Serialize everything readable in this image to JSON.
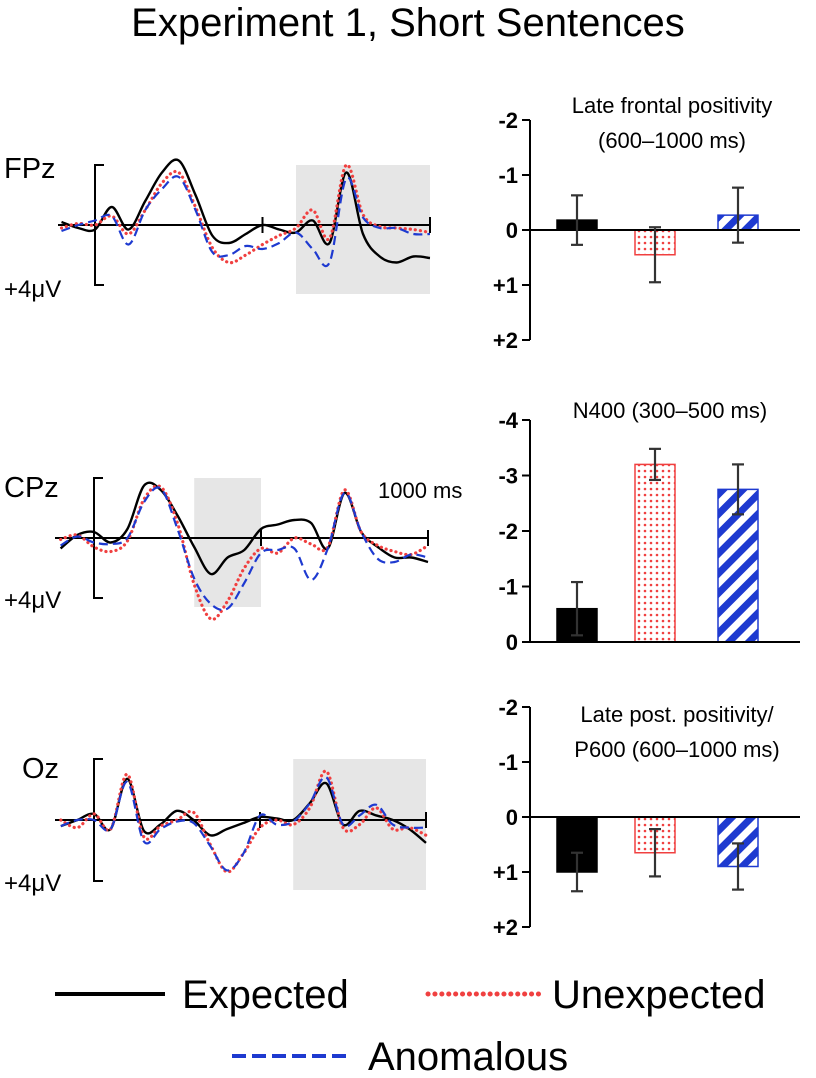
{
  "title": "Experiment 1, Short Sentences",
  "colors": {
    "expected": "#000000",
    "unexpected": "#f04040",
    "anomalous": "#1e3ad0",
    "window": "#e6e6e6",
    "error": "#333333"
  },
  "legend": [
    {
      "key": "expected",
      "label": "Expected",
      "style": "solid"
    },
    {
      "key": "unexpected",
      "label": "Unexpected",
      "style": "dotted"
    },
    {
      "key": "anomalous",
      "label": "Anomalous",
      "style": "dashed"
    }
  ],
  "chart_data": [
    {
      "type": "line",
      "electrode": "FPz",
      "amp_label": "+4μV",
      "time_label": "",
      "window_ms": [
        600,
        1000
      ],
      "x_range_ms": [
        -100,
        1000
      ],
      "y_range_uv": [
        -4,
        4
      ],
      "series": [
        {
          "name": "Expected",
          "key": "expected",
          "x": [
            -100,
            -50,
            0,
            50,
            100,
            150,
            200,
            250,
            300,
            350,
            400,
            450,
            500,
            550,
            600,
            650,
            700,
            750,
            800,
            850,
            900,
            950,
            1000
          ],
          "y": [
            -0.2,
            0.2,
            0.3,
            -1.2,
            0.3,
            -1.6,
            -3.5,
            -4.3,
            -2.0,
            0.7,
            1.2,
            0.6,
            0.0,
            0.3,
            0.5,
            -0.3,
            1.2,
            -3.5,
            0.6,
            2.1,
            2.5,
            2.1,
            2.2
          ]
        },
        {
          "name": "Unexpected",
          "key": "unexpected",
          "x": [
            -100,
            -50,
            0,
            50,
            100,
            150,
            200,
            250,
            300,
            350,
            400,
            450,
            500,
            550,
            600,
            650,
            700,
            750,
            800,
            850,
            900,
            950,
            1000
          ],
          "y": [
            0.2,
            -0.1,
            0.0,
            -0.6,
            0.6,
            -1.0,
            -2.8,
            -3.5,
            -1.2,
            1.5,
            2.5,
            2.0,
            1.3,
            0.7,
            0.2,
            -1.0,
            0.9,
            -4.0,
            -0.7,
            0.1,
            0.2,
            0.3,
            0.5
          ]
        },
        {
          "name": "Anomalous",
          "key": "anomalous",
          "x": [
            -100,
            -50,
            0,
            50,
            100,
            150,
            200,
            250,
            300,
            350,
            400,
            450,
            500,
            550,
            600,
            650,
            700,
            750,
            800,
            850,
            900,
            950,
            1000
          ],
          "y": [
            0.4,
            0.0,
            -0.3,
            -0.6,
            1.3,
            -1.0,
            -2.4,
            -3.2,
            -1.0,
            1.8,
            2.0,
            1.4,
            1.6,
            1.2,
            0.5,
            1.6,
            2.5,
            -3.1,
            -0.5,
            0.2,
            0.2,
            0.6,
            0.6
          ]
        }
      ]
    },
    {
      "type": "line",
      "electrode": "CPz",
      "amp_label": "+4μV",
      "time_label": "1000 ms",
      "window_ms": [
        300,
        500
      ],
      "x_range_ms": [
        -100,
        1000
      ],
      "y_range_uv": [
        -4,
        4
      ],
      "series": [
        {
          "name": "Expected",
          "key": "expected",
          "x": [
            -100,
            -50,
            0,
            50,
            100,
            150,
            200,
            250,
            300,
            350,
            400,
            450,
            500,
            550,
            600,
            650,
            700,
            750,
            800,
            850,
            900,
            950,
            1000
          ],
          "y": [
            0.7,
            -0.2,
            -0.4,
            0.3,
            -0.6,
            -3.5,
            -3.2,
            -1.5,
            0.6,
            2.4,
            1.3,
            0.8,
            -0.6,
            -0.9,
            -1.2,
            -1.0,
            0.7,
            -3.0,
            -0.4,
            0.6,
            1.3,
            1.3,
            1.6
          ]
        },
        {
          "name": "Unexpected",
          "key": "unexpected",
          "x": [
            -100,
            -50,
            0,
            50,
            100,
            150,
            200,
            250,
            300,
            350,
            400,
            450,
            500,
            550,
            600,
            650,
            700,
            750,
            800,
            850,
            900,
            950,
            1000
          ],
          "y": [
            0.1,
            -0.2,
            0.6,
            0.9,
            0.2,
            -2.6,
            -3.4,
            -1.0,
            3.1,
            5.4,
            4.2,
            2.0,
            0.7,
            1.0,
            0.0,
            0.4,
            0.6,
            -3.2,
            -0.4,
            0.5,
            0.9,
            1.1,
            0.5
          ]
        },
        {
          "name": "Anomalous",
          "key": "anomalous",
          "x": [
            -100,
            -50,
            0,
            50,
            100,
            150,
            200,
            250,
            300,
            350,
            400,
            450,
            500,
            550,
            600,
            650,
            700,
            750,
            800,
            850,
            900,
            950,
            1000
          ],
          "y": [
            0.5,
            -0.1,
            0.3,
            0.4,
            0.0,
            -2.4,
            -3.3,
            -0.6,
            2.7,
            4.4,
            4.7,
            3.0,
            1.0,
            0.8,
            0.7,
            2.8,
            0.7,
            -3.0,
            -0.4,
            1.4,
            1.6,
            1.1,
            1.3
          ]
        }
      ]
    },
    {
      "type": "line",
      "electrode": "Oz",
      "amp_label": "+4μV",
      "time_label": "",
      "window_ms": [
        600,
        1000
      ],
      "x_range_ms": [
        -100,
        1000
      ],
      "y_range_uv": [
        -4,
        4
      ],
      "series": [
        {
          "name": "Expected",
          "key": "expected",
          "x": [
            -100,
            -50,
            0,
            50,
            100,
            150,
            200,
            250,
            300,
            350,
            400,
            450,
            500,
            550,
            600,
            650,
            700,
            750,
            800,
            850,
            900,
            950,
            1000
          ],
          "y": [
            0.4,
            0.0,
            -0.4,
            0.6,
            -2.7,
            0.7,
            0.3,
            -0.6,
            0.0,
            1.0,
            0.6,
            0.2,
            -0.2,
            -0.1,
            0.0,
            -1.1,
            -2.4,
            0.3,
            -0.6,
            -0.3,
            0.0,
            0.6,
            1.5
          ]
        },
        {
          "name": "Unexpected",
          "key": "unexpected",
          "x": [
            -100,
            -50,
            0,
            50,
            100,
            150,
            200,
            250,
            300,
            350,
            400,
            450,
            500,
            550,
            600,
            650,
            700,
            750,
            800,
            850,
            900,
            950,
            1000
          ],
          "y": [
            0.0,
            0.5,
            -0.4,
            0.6,
            -3.0,
            1.1,
            0.4,
            0.0,
            -0.5,
            1.6,
            3.4,
            2.2,
            0.5,
            0.0,
            0.3,
            -0.8,
            -3.2,
            0.5,
            0.3,
            -0.8,
            0.6,
            0.5,
            1.0
          ]
        },
        {
          "name": "Anomalous",
          "key": "anomalous",
          "x": [
            -100,
            -50,
            0,
            50,
            100,
            150,
            200,
            250,
            300,
            350,
            400,
            450,
            500,
            550,
            600,
            650,
            700,
            750,
            800,
            850,
            900,
            950,
            1000
          ],
          "y": [
            0.4,
            0.0,
            0.0,
            0.6,
            -2.5,
            1.4,
            0.6,
            0.1,
            0.2,
            1.7,
            3.3,
            2.2,
            -0.3,
            0.3,
            0.1,
            -1.1,
            -2.8,
            0.3,
            -0.3,
            -1.0,
            0.3,
            0.5,
            0.5
          ]
        }
      ]
    },
    {
      "type": "bar",
      "title_lines": [
        "Late frontal positivity",
        "(600–1000 ms)"
      ],
      "categories": [
        "Expected",
        "Unexpected",
        "Anomalous"
      ],
      "values": [
        -0.18,
        0.45,
        -0.27
      ],
      "error": [
        0.45,
        0.5,
        0.5
      ],
      "y_range": [
        -2,
        2
      ],
      "ticks": [
        -2,
        -1,
        0,
        1,
        2
      ],
      "tick_labels": [
        "-2",
        "-1",
        "0",
        "+1",
        "+2"
      ],
      "inverted": true
    },
    {
      "type": "bar",
      "title_lines": [
        "N400 (300–500 ms)"
      ],
      "categories": [
        "Expected",
        "Unexpected",
        "Anomalous"
      ],
      "values": [
        -0.6,
        -3.2,
        -2.75
      ],
      "error": [
        0.48,
        0.28,
        0.45
      ],
      "y_range": [
        -4,
        0
      ],
      "ticks": [
        -4,
        -3,
        -2,
        -1,
        0
      ],
      "tick_labels": [
        "-4",
        "-3",
        "-2",
        "-1",
        "0"
      ],
      "inverted": true
    },
    {
      "type": "bar",
      "title_lines": [
        "Late post. positivity/",
        "P600 (600–1000 ms)"
      ],
      "categories": [
        "Expected",
        "Unexpected",
        "Anomalous"
      ],
      "values": [
        1.0,
        0.65,
        0.9
      ],
      "error": [
        0.35,
        0.43,
        0.42
      ],
      "y_range": [
        -2,
        2
      ],
      "ticks": [
        -2,
        -1,
        0,
        1,
        2
      ],
      "tick_labels": [
        "-2",
        "-1",
        "0",
        "+1",
        "+2"
      ],
      "inverted": true
    }
  ]
}
